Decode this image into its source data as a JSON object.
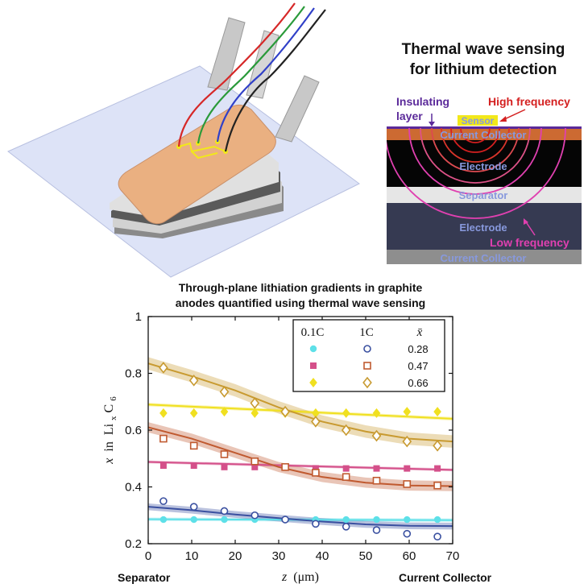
{
  "inset": {
    "title_line1": "Thermal wave sensing",
    "title_line2": "for lithium detection",
    "labels": {
      "insulating_line1": "Insulating",
      "insulating_line2": "layer",
      "high_frequency": "High frequency",
      "sensor": "Sensor",
      "current_collector_top": "Current Collector",
      "electrode_top": "Electrode",
      "separator": "Separator",
      "electrode_bottom": "Electrode",
      "low_frequency": "Low frequency",
      "current_collector_bottom": "Current Collector"
    },
    "colors": {
      "insulating": "#5b2a9a",
      "high_frequency": "#d42020",
      "low_frequency": "#e040b0",
      "layer_text": "#8899dd",
      "sensor_bg": "#f2e81a"
    }
  },
  "chart_data": {
    "type": "scatter",
    "title_line1": "Through-plane lithiation gradients in graphite",
    "title_line2": "anodes quantified using thermal wave sensing",
    "xlabel_var": "z",
    "xlabel_unit": "(μm)",
    "ylabel_var": "x",
    "ylabel_in": "in",
    "ylabel_species": "Li",
    "ylabel_sub_x": "x",
    "ylabel_carbon": "C",
    "ylabel_sub_6": "6",
    "xlim": [
      0,
      70
    ],
    "ylim": [
      0.2,
      1.0
    ],
    "xticks": [
      "0",
      "10",
      "20",
      "30",
      "40",
      "50",
      "60",
      "70"
    ],
    "yticks": [
      "0.2",
      "0.4",
      "0.6",
      "0.8",
      "1"
    ],
    "x_left_label": "Separator",
    "x_right_label": "Current Collector",
    "legend": {
      "col1": "0.1C",
      "col2": "1C",
      "col3": "x̄",
      "rows": [
        "0.28",
        "0.47",
        "0.66"
      ]
    },
    "x": [
      3.5,
      10.5,
      17.5,
      24.5,
      31.5,
      38.5,
      45.5,
      52.5,
      59.5,
      66.5
    ],
    "series": [
      {
        "rate": "0.1C",
        "xbar": "0.28",
        "marker": "circle-filled",
        "color": "#5ee0e8",
        "values": [
          0.285,
          0.285,
          0.285,
          0.285,
          0.285,
          0.285,
          0.285,
          0.285,
          0.285,
          0.285
        ],
        "fit": [
          [
            0,
            0.286
          ],
          [
            70,
            0.283
          ]
        ],
        "band": 0.006
      },
      {
        "rate": "0.1C",
        "xbar": "0.47",
        "marker": "square-filled",
        "color": "#d4508a",
        "values": [
          0.475,
          0.475,
          0.47,
          0.47,
          0.47,
          0.465,
          0.465,
          0.465,
          0.465,
          0.465
        ],
        "fit": [
          [
            0,
            0.488
          ],
          [
            70,
            0.46
          ]
        ],
        "band": 0.005
      },
      {
        "rate": "0.1C",
        "xbar": "0.66",
        "marker": "diamond-filled",
        "color": "#f0e020",
        "values": [
          0.66,
          0.66,
          0.665,
          0.66,
          0.66,
          0.66,
          0.66,
          0.66,
          0.665,
          0.665
        ],
        "fit": [
          [
            0,
            0.69
          ],
          [
            70,
            0.64
          ]
        ],
        "band": 0.006
      },
      {
        "rate": "1C",
        "xbar": "0.28",
        "marker": "circle-open",
        "color": "#3a50a0",
        "values": [
          0.35,
          0.33,
          0.315,
          0.3,
          0.285,
          0.27,
          0.26,
          0.248,
          0.235,
          0.225
        ],
        "fit": [
          [
            0,
            0.33
          ],
          [
            10,
            0.318
          ],
          [
            20,
            0.303
          ],
          [
            30,
            0.29
          ],
          [
            40,
            0.278
          ],
          [
            50,
            0.268
          ],
          [
            60,
            0.263
          ],
          [
            70,
            0.262
          ]
        ],
        "band": 0.012
      },
      {
        "rate": "1C",
        "xbar": "0.47",
        "marker": "square-open",
        "color": "#c05a30",
        "values": [
          0.57,
          0.545,
          0.515,
          0.49,
          0.47,
          0.45,
          0.435,
          0.422,
          0.41,
          0.405
        ],
        "fit": [
          [
            0,
            0.61
          ],
          [
            10,
            0.57
          ],
          [
            20,
            0.52
          ],
          [
            30,
            0.47
          ],
          [
            40,
            0.435
          ],
          [
            50,
            0.415
          ],
          [
            60,
            0.405
          ],
          [
            70,
            0.403
          ]
        ],
        "band": 0.018
      },
      {
        "rate": "1C",
        "xbar": "0.66",
        "marker": "diamond-open",
        "color": "#c89a30",
        "values": [
          0.82,
          0.775,
          0.735,
          0.695,
          0.665,
          0.63,
          0.6,
          0.58,
          0.56,
          0.545
        ],
        "fit": [
          [
            0,
            0.835
          ],
          [
            10,
            0.79
          ],
          [
            20,
            0.74
          ],
          [
            30,
            0.68
          ],
          [
            40,
            0.63
          ],
          [
            50,
            0.595
          ],
          [
            60,
            0.57
          ],
          [
            70,
            0.56
          ]
        ],
        "band": 0.022
      }
    ]
  }
}
